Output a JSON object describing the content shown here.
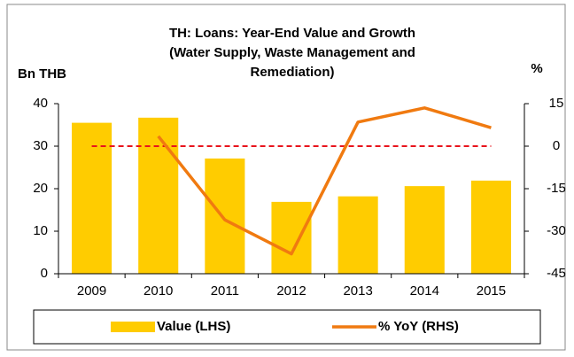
{
  "chart_data": {
    "type": "bar",
    "title": [
      "TH: Loans: Year-End Value and Growth",
      "(Water Supply, Waste Management and",
      "Remediation)"
    ],
    "y_label": "Bn THB",
    "y2_label": "%",
    "categories": [
      "2009",
      "2010",
      "2011",
      "2012",
      "2013",
      "2014",
      "2015"
    ],
    "series": [
      {
        "name": "Value (LHS)",
        "type": "bar",
        "color": "#ffcc00",
        "values": [
          35.5,
          36.7,
          27.1,
          16.9,
          18.2,
          20.6,
          21.9
        ]
      },
      {
        "name": "% YoY (RHS)",
        "type": "line",
        "axis": "y2",
        "color": "#f07a10",
        "values": [
          null,
          3.5,
          -26,
          -38,
          8.5,
          13.5,
          6.5
        ]
      }
    ],
    "ylim": [
      0,
      40
    ],
    "yticks": [
      0,
      10,
      20,
      30,
      40
    ],
    "y2lim": [
      -45,
      15
    ],
    "y2ticks": [
      -45,
      -30,
      -15,
      0,
      15
    ],
    "reference_line": {
      "axis": "y2",
      "value": 0,
      "color": "#e8141c"
    },
    "legend": "bottom"
  }
}
